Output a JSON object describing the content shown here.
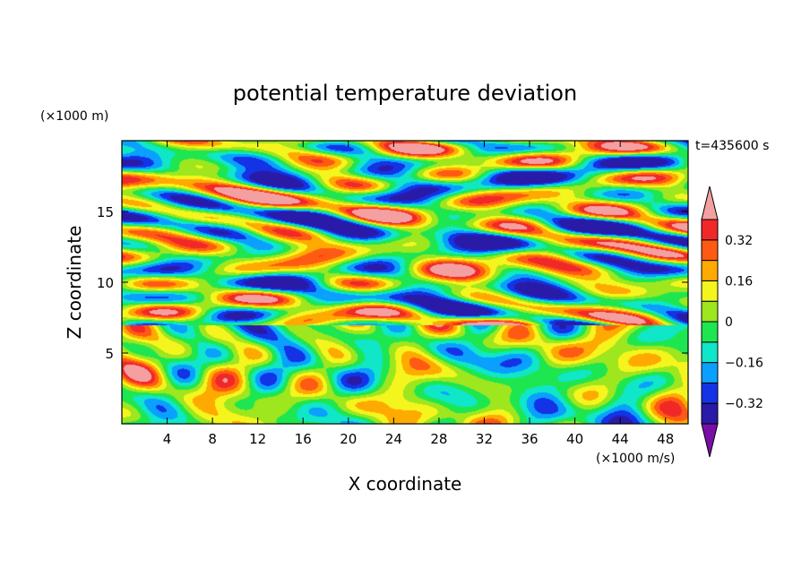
{
  "chart_data": {
    "type": "heatmap",
    "title": "potential temperature deviation",
    "xlabel": "X coordinate",
    "ylabel": "Z coordinate",
    "x_unit": "(×1000 m/s)",
    "y_unit": "(×1000 m)",
    "time_label": "t=435600 s",
    "xlim": [
      0,
      50
    ],
    "ylim": [
      0,
      20
    ],
    "x_ticks": [
      4,
      8,
      12,
      16,
      20,
      24,
      28,
      32,
      36,
      40,
      44,
      48
    ],
    "y_ticks": [
      5,
      10,
      15
    ],
    "colorbar": {
      "labels": [
        "0.32",
        "0.16",
        "0",
        "−0.16",
        "−0.32"
      ],
      "label_values": [
        0.32,
        0.16,
        0,
        -0.16,
        -0.32
      ],
      "levels": [
        -0.4,
        -0.32,
        -0.24,
        -0.16,
        -0.08,
        0,
        0.08,
        0.16,
        0.24,
        0.32,
        0.4
      ],
      "colors": [
        "#7a0fa8",
        "#2a1aa8",
        "#1432e6",
        "#0aa0ff",
        "#10e6c8",
        "#1ee650",
        "#9ee61e",
        "#f5f51e",
        "#ffaa00",
        "#ff5a14",
        "#f02828",
        "#f5a0a0"
      ],
      "extend": "both"
    },
    "fields": {
      "upper_layer_z_range": [
        7,
        20
      ],
      "lower_layer_z_range": [
        0,
        7
      ],
      "upper_layer_range": [
        -0.4,
        0.4
      ],
      "lower_layer_range": [
        -0.4,
        0.4
      ]
    },
    "grid": false,
    "legend": "right"
  }
}
